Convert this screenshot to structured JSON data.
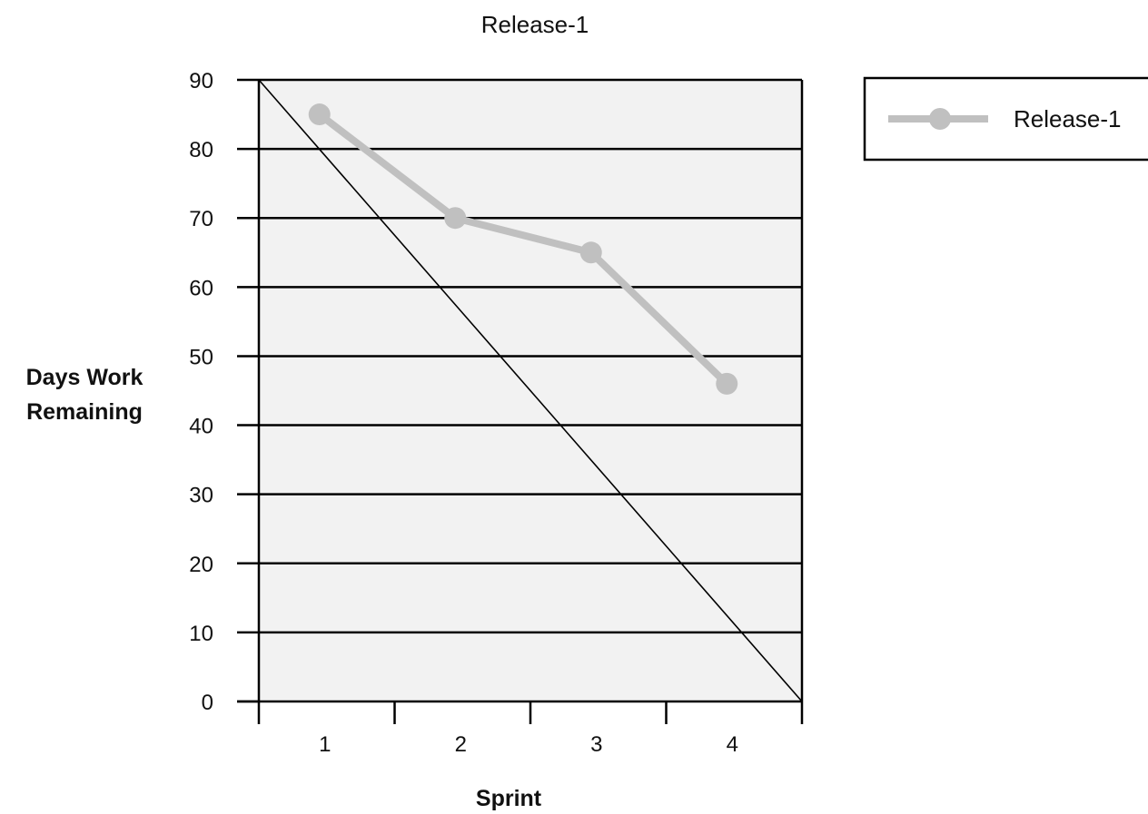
{
  "chart_data": {
    "type": "line",
    "title": "Release-1",
    "xlabel": "Sprint",
    "ylabel": [
      "Days Work",
      "Remaining"
    ],
    "categories": [
      "1",
      "2",
      "3",
      "4"
    ],
    "series": [
      {
        "name": "Release-1",
        "values": [
          85,
          70,
          65,
          46
        ],
        "color": "#c0c0c0"
      }
    ],
    "ideal_line": {
      "values": [
        90,
        0
      ],
      "color": "#000000"
    },
    "ylim": [
      0,
      90
    ],
    "yticks": [
      0,
      10,
      20,
      30,
      40,
      50,
      60,
      70,
      80,
      90
    ],
    "grid": true,
    "plot_background": "#f2f2f2",
    "legend": {
      "position": "top-right",
      "entries": [
        "Release-1"
      ]
    }
  }
}
